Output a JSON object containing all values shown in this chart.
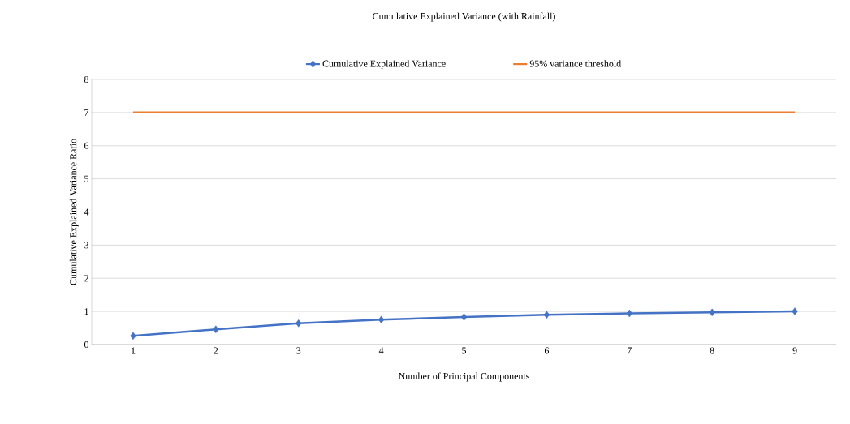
{
  "chart_data": {
    "type": "line",
    "title": "Cumulative Explained Variance (with Rainfall)",
    "xlabel": "Number of Principal Components",
    "ylabel": "Cumulative Explained Variance Ratio",
    "categories": [
      "1",
      "2",
      "3",
      "4",
      "5",
      "6",
      "7",
      "8",
      "9"
    ],
    "series": [
      {
        "name": "Cumulative Explained Variance",
        "color": "#4472c4",
        "marker": "diamond",
        "values": [
          0.26,
          0.46,
          0.64,
          0.75,
          0.83,
          0.9,
          0.94,
          0.97,
          1.0
        ]
      },
      {
        "name": "95% variance threshold",
        "color": "#ed7d31",
        "marker": "none",
        "values": [
          7,
          7,
          7,
          7,
          7,
          7,
          7,
          7,
          7
        ]
      }
    ],
    "ylim": [
      0,
      8
    ],
    "yticks": [
      0,
      1,
      2,
      3,
      4,
      5,
      6,
      7,
      8
    ],
    "grid": "y",
    "legend": "top"
  }
}
